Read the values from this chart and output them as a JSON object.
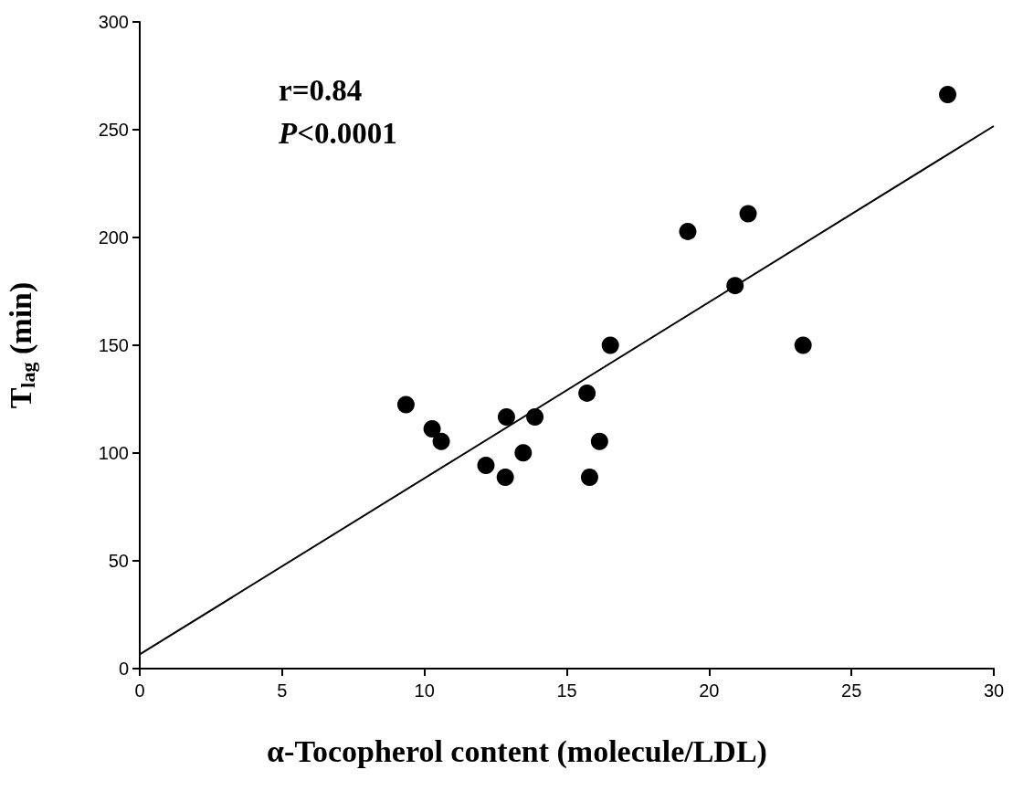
{
  "chart_data": {
    "type": "scatter",
    "xlabel": "α-Tocopherol content (molecule/LDL)",
    "ylabel": "T$_{lag}$ (min)",
    "annotations": [
      "r=0.84",
      "P<0.0001"
    ],
    "series": [
      {
        "color": "#000000",
        "marker": "circle",
        "x": [
          9.35,
          10.27,
          10.59,
          12.16,
          12.84,
          12.88,
          13.47,
          13.88,
          15.71,
          15.8,
          16.15,
          16.53,
          19.25,
          21.37,
          20.91,
          23.3,
          28.38
        ],
        "values": [
          122.5,
          111.2,
          105.4,
          94.3,
          88.8,
          116.7,
          100.1,
          116.7,
          127.8,
          88.8,
          105.4,
          150,
          202.8,
          211,
          177.7,
          150,
          266.3
        ]
      },
      {
        "type": "line",
        "color": "#000000",
        "marker": "none",
        "line_style": "solid",
        "x": [
          0,
          30
        ],
        "values": [
          6.6,
          251.7
        ]
      }
    ],
    "xlim": [
      0,
      30
    ],
    "xticks": [
      0,
      5,
      10,
      15,
      20,
      25,
      30
    ],
    "ylim": [
      0,
      300
    ],
    "yticks": [
      0,
      50,
      100,
      150,
      200,
      250,
      300
    ],
    "grid": false
  }
}
